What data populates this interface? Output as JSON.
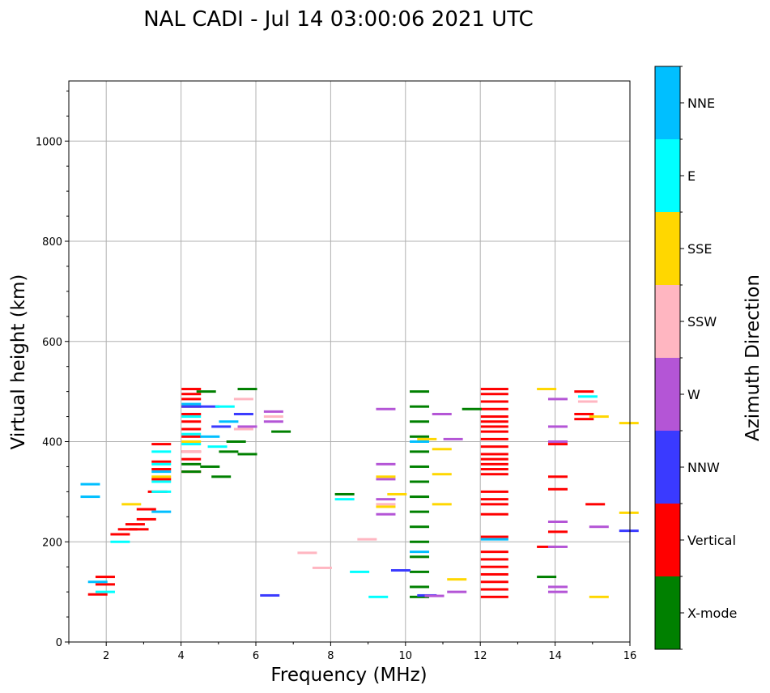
{
  "chart_data": {
    "type": "scatter",
    "title": "NAL CADI - Jul 14 03:00:06 2021 UTC",
    "xlabel": "Frequency (MHz)",
    "ylabel": "Virtual height (km)",
    "xlim": [
      1,
      16
    ],
    "ylim": [
      0,
      1120
    ],
    "xticks": [
      2,
      4,
      6,
      8,
      10,
      12,
      14,
      16
    ],
    "yticks": [
      0,
      200,
      400,
      600,
      800,
      1000
    ],
    "grid": true,
    "colorbar": {
      "label": "Azimuth Direction",
      "categories": [
        {
          "name": "X-mode",
          "color": "#008000"
        },
        {
          "name": "Vertical",
          "color": "#ff0000"
        },
        {
          "name": "NNW",
          "color": "#3a3aff"
        },
        {
          "name": "W",
          "color": "#b455d6"
        },
        {
          "name": "SSW",
          "color": "#ffb6c1"
        },
        {
          "name": "SSE",
          "color": "#ffd700"
        },
        {
          "name": "E",
          "color": "#00ffff"
        },
        {
          "name": "NNE",
          "color": "#00bfff"
        }
      ]
    },
    "series": [
      {
        "name": "Vertical",
        "points": [
          [
            12.1,
            505
          ],
          [
            12.1,
            495
          ],
          [
            12.1,
            480
          ],
          [
            12.1,
            465
          ],
          [
            12.1,
            450
          ],
          [
            12.1,
            440
          ],
          [
            12.1,
            430
          ],
          [
            12.1,
            420
          ],
          [
            12.1,
            405
          ],
          [
            12.1,
            390
          ],
          [
            12.1,
            375
          ],
          [
            12.1,
            365
          ],
          [
            12.1,
            355
          ],
          [
            12.1,
            345
          ],
          [
            12.1,
            335
          ],
          [
            12.1,
            300
          ],
          [
            12.1,
            285
          ],
          [
            12.1,
            275
          ],
          [
            12.1,
            255
          ],
          [
            12.1,
            210
          ],
          [
            12.1,
            180
          ],
          [
            12.1,
            165
          ],
          [
            12.1,
            150
          ],
          [
            12.1,
            135
          ],
          [
            12.1,
            120
          ],
          [
            12.1,
            105
          ],
          [
            12.1,
            90
          ],
          [
            4.1,
            505
          ],
          [
            4.1,
            495
          ],
          [
            4.1,
            485
          ],
          [
            4.1,
            470
          ],
          [
            4.1,
            455
          ],
          [
            4.1,
            440
          ],
          [
            4.1,
            425
          ],
          [
            4.1,
            410
          ],
          [
            4.1,
            380
          ],
          [
            4.1,
            365
          ],
          [
            4.1,
            340
          ],
          [
            3.3,
            395
          ],
          [
            3.3,
            360
          ],
          [
            3.3,
            345
          ],
          [
            3.3,
            325
          ],
          [
            2.9,
            265
          ],
          [
            2.9,
            245
          ],
          [
            3.2,
            300
          ],
          [
            2.2,
            215
          ],
          [
            2.4,
            225
          ],
          [
            2.6,
            235
          ],
          [
            2.7,
            225
          ],
          [
            1.8,
            130
          ],
          [
            1.8,
            115
          ],
          [
            1.6,
            95
          ],
          [
            14.6,
            500
          ],
          [
            14.6,
            455
          ],
          [
            14.6,
            445
          ],
          [
            14.9,
            275
          ],
          [
            13.9,
            395
          ],
          [
            13.9,
            330
          ],
          [
            13.9,
            305
          ],
          [
            13.9,
            240
          ],
          [
            13.9,
            220
          ],
          [
            13.6,
            190
          ]
        ]
      },
      {
        "name": "X-mode",
        "points": [
          [
            10.2,
            500
          ],
          [
            10.2,
            470
          ],
          [
            10.2,
            440
          ],
          [
            10.2,
            410
          ],
          [
            10.2,
            380
          ],
          [
            10.2,
            350
          ],
          [
            10.2,
            320
          ],
          [
            10.2,
            290
          ],
          [
            10.2,
            260
          ],
          [
            10.2,
            230
          ],
          [
            10.2,
            200
          ],
          [
            10.2,
            170
          ],
          [
            10.2,
            140
          ],
          [
            10.2,
            110
          ],
          [
            10.2,
            90
          ],
          [
            4.1,
            355
          ],
          [
            4.1,
            340
          ],
          [
            4.6,
            350
          ],
          [
            4.9,
            330
          ],
          [
            5.1,
            380
          ],
          [
            5.3,
            400
          ],
          [
            5.6,
            505
          ],
          [
            5.6,
            375
          ],
          [
            8.2,
            295
          ],
          [
            11.6,
            465
          ],
          [
            13.6,
            130
          ],
          [
            4.5,
            500
          ],
          [
            6.5,
            420
          ]
        ]
      },
      {
        "name": "NNW",
        "points": [
          [
            4.1,
            470
          ],
          [
            4.6,
            470
          ],
          [
            4.9,
            430
          ],
          [
            5.5,
            455
          ],
          [
            6.2,
            93
          ],
          [
            10.4,
            93
          ],
          [
            15.8,
            222
          ],
          [
            9.7,
            143
          ]
        ]
      },
      {
        "name": "W",
        "points": [
          [
            6.3,
            460
          ],
          [
            6.3,
            440
          ],
          [
            5.6,
            430
          ],
          [
            9.3,
            465
          ],
          [
            9.3,
            355
          ],
          [
            9.3,
            325
          ],
          [
            9.3,
            285
          ],
          [
            9.3,
            255
          ],
          [
            10.8,
            455
          ],
          [
            11.1,
            405
          ],
          [
            13.9,
            485
          ],
          [
            13.9,
            430
          ],
          [
            13.9,
            400
          ],
          [
            13.9,
            240
          ],
          [
            13.9,
            190
          ],
          [
            13.9,
            110
          ],
          [
            13.9,
            100
          ],
          [
            15.0,
            230
          ],
          [
            10.6,
            92
          ],
          [
            11.2,
            100
          ]
        ]
      },
      {
        "name": "SSW",
        "points": [
          [
            5.5,
            485
          ],
          [
            5.5,
            425
          ],
          [
            6.3,
            450
          ],
          [
            8.8,
            205
          ],
          [
            7.2,
            178
          ],
          [
            7.6,
            148
          ],
          [
            9.3,
            275
          ],
          [
            14.7,
            480
          ],
          [
            4.1,
            380
          ]
        ]
      },
      {
        "name": "SSE",
        "points": [
          [
            10.4,
            405
          ],
          [
            10.8,
            385
          ],
          [
            10.8,
            335
          ],
          [
            10.8,
            275
          ],
          [
            11.2,
            125
          ],
          [
            13.6,
            505
          ],
          [
            15.0,
            450
          ],
          [
            15.0,
            90
          ],
          [
            15.8,
            437
          ],
          [
            15.8,
            258
          ],
          [
            9.6,
            295
          ],
          [
            9.3,
            330
          ],
          [
            9.3,
            270
          ],
          [
            4.1,
            400
          ],
          [
            3.3,
            330
          ],
          [
            2.5,
            275
          ]
        ]
      },
      {
        "name": "E",
        "points": [
          [
            4.1,
            415
          ],
          [
            4.1,
            395
          ],
          [
            3.3,
            300
          ],
          [
            3.3,
            320
          ],
          [
            3.3,
            355
          ],
          [
            3.3,
            380
          ],
          [
            4.1,
            450
          ],
          [
            8.2,
            285
          ],
          [
            8.6,
            140
          ],
          [
            9.1,
            90
          ],
          [
            14.7,
            490
          ],
          [
            2.2,
            200
          ],
          [
            1.8,
            100
          ],
          [
            4.8,
            390
          ],
          [
            5.0,
            470
          ]
        ]
      },
      {
        "name": "NNE",
        "points": [
          [
            3.3,
            260
          ],
          [
            3.3,
            340
          ],
          [
            4.1,
            475
          ],
          [
            4.6,
            410
          ],
          [
            5.1,
            440
          ],
          [
            12.1,
            205
          ],
          [
            1.4,
            315
          ],
          [
            1.4,
            290
          ],
          [
            1.6,
            120
          ],
          [
            10.2,
            180
          ],
          [
            10.2,
            400
          ]
        ]
      }
    ]
  }
}
